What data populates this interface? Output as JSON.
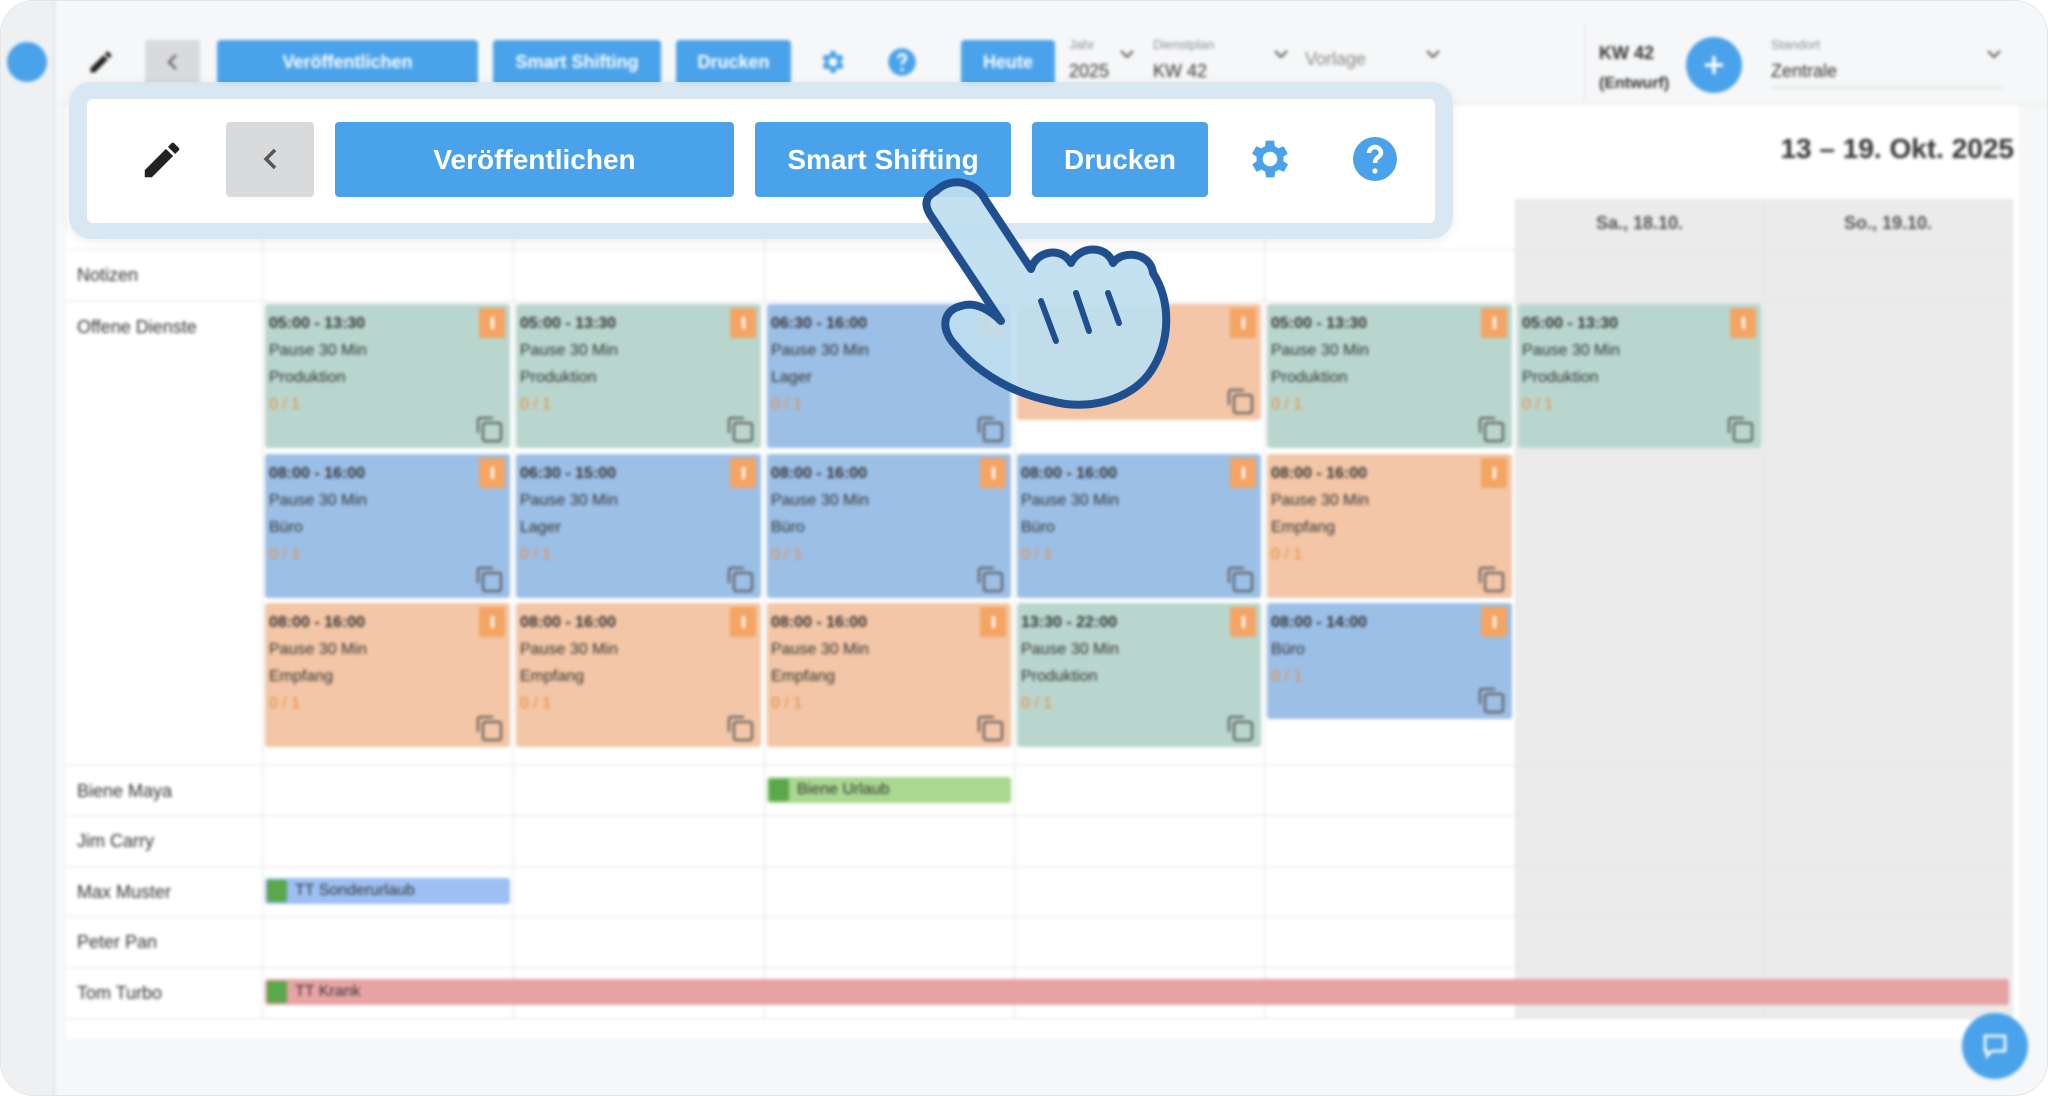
{
  "toolbar": {
    "publish": "Veröffentlichen",
    "smart": "Smart Shifting",
    "print": "Drucken",
    "today": "Heute",
    "year_label": "Jahr",
    "year": "2025",
    "plan_label": "Dienstplan",
    "plan": "KW 42",
    "template": "Vorlage",
    "week": "KW 42",
    "status": "(Entwurf)",
    "location_label": "Standort",
    "location": "Zentrale"
  },
  "popup": {
    "publish": "Veröffentlichen",
    "smart": "Smart Shifting",
    "print": "Drucken"
  },
  "date_range": "13 – 19. Okt. 2025",
  "visible_day_headers": [
    "Sa., 18.10.",
    "So., 19.10."
  ],
  "rows": [
    "Notizen",
    "Offene Dienste",
    "Biene Maya",
    "Jim Carry",
    "Max Muster",
    "Peter Pan",
    "Tom Turbo"
  ],
  "open_shift_slots": [
    [
      {
        "time": "05:00 - 13:30",
        "pause": "Pause 30 Min",
        "area": "Produktion",
        "staffing": "0 / 1",
        "color": "#b9d6ce"
      },
      {
        "time": "05:00 - 13:30",
        "pause": "Pause 30 Min",
        "area": "Produktion",
        "staffing": "0 / 1",
        "color": "#b9d6ce"
      },
      {
        "time": "06:30 - 16:00",
        "pause": "Pause 30 Min",
        "area": "Lager",
        "staffing": "0 / 1",
        "color": "#9cbfe6"
      },
      {
        "color": "#f2c6a6"
      },
      {
        "time": "05:00 - 13:30",
        "pause": "Pause 30 Min",
        "area": "Produktion",
        "staffing": "0 / 1",
        "color": "#b9d6ce"
      },
      {
        "time": "05:00 - 13:30",
        "pause": "Pause 30 Min",
        "area": "Produktion",
        "staffing": "0 / 1",
        "color": "#b9d6ce"
      }
    ],
    [
      {
        "time": "08:00 - 16:00",
        "pause": "Pause 30 Min",
        "area": "Büro",
        "staffing": "0 / 1",
        "color": "#9cbfe6"
      },
      {
        "time": "06:30 - 15:00",
        "pause": "Pause 30 Min",
        "area": "Lager",
        "staffing": "0 / 1",
        "color": "#9cbfe6"
      },
      {
        "time": "08:00 - 16:00",
        "pause": "Pause 30 Min",
        "area": "Büro",
        "staffing": "0 / 1",
        "color": "#9cbfe6"
      },
      {
        "time": "08:00 - 16:00",
        "pause": "Pause 30 Min",
        "area": "Büro",
        "staffing": "0 / 1",
        "color": "#9cbfe6"
      },
      {
        "time": "08:00 - 16:00",
        "pause": "Pause 30 Min",
        "area": "Empfang",
        "staffing": "0 / 1",
        "color": "#f2c6a6"
      }
    ],
    [
      {
        "time": "08:00 - 16:00",
        "pause": "Pause 30 Min",
        "area": "Empfang",
        "staffing": "0 / 1",
        "color": "#f2c6a6"
      },
      {
        "time": "08:00 - 16:00",
        "pause": "Pause 30 Min",
        "area": "Empfang",
        "staffing": "0 / 1",
        "color": "#f2c6a6"
      },
      {
        "time": "08:00 - 16:00",
        "pause": "Pause 30 Min",
        "area": "Empfang",
        "staffing": "0 / 1",
        "color": "#f2c6a6"
      },
      {
        "time": "13:30 - 22:00",
        "pause": "Pause 30 Min",
        "area": "Produktion",
        "staffing": "0 / 1",
        "color": "#b9d6ce"
      },
      {
        "time": "08:00 - 14:00",
        "area": "Büro",
        "staffing": "0 / 1",
        "color": "#9cbfe6"
      }
    ]
  ],
  "absences": [
    {
      "person": 2,
      "label": "Biene Urlaub",
      "start_day": 2,
      "days": 1,
      "color": "#a9d890"
    },
    {
      "person": 4,
      "label": "TT Sonderurlaub",
      "start_day": 0,
      "days": 1,
      "color": "#9dbff3"
    },
    {
      "person": 6,
      "label": "TT Krank",
      "start_day": 0,
      "days": 7,
      "color": "#e8a4a4"
    }
  ]
}
